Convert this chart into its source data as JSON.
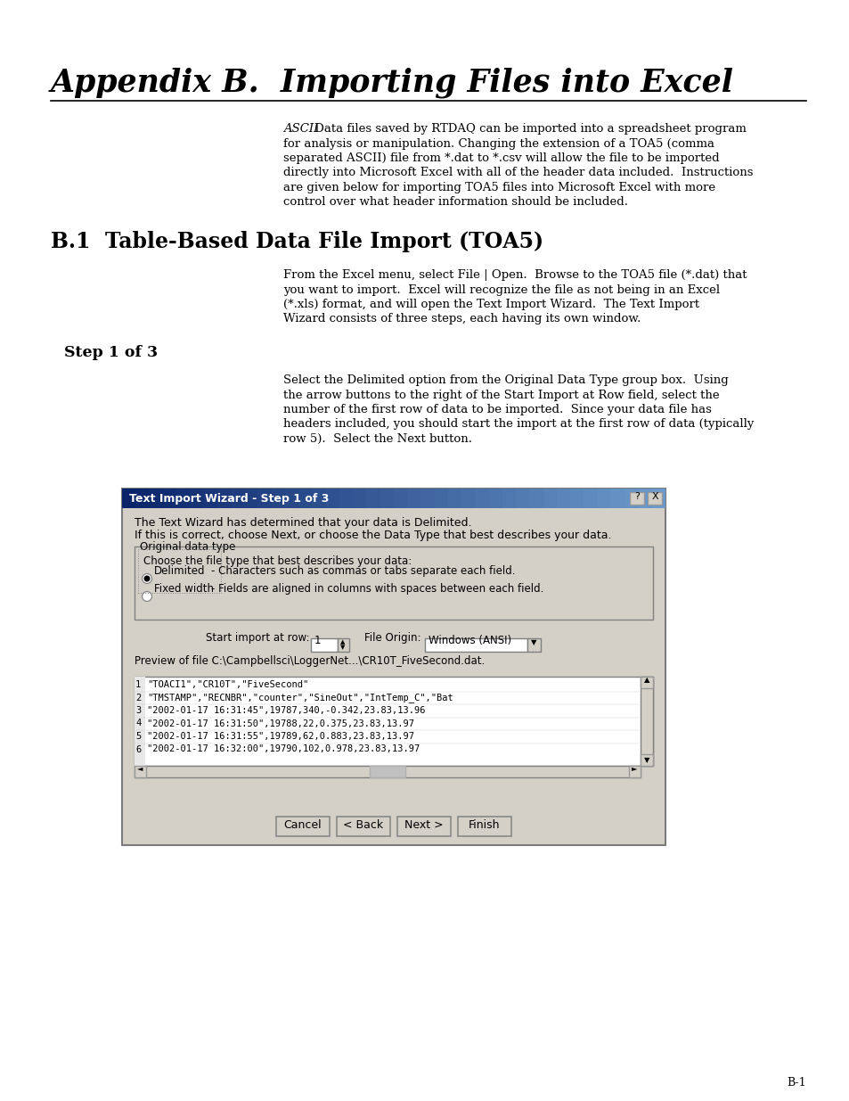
{
  "title": "Appendix B.  Importing Files into Excel",
  "bg_color": "#ffffff",
  "section_heading": "B.1  Table-Based Data File Import (TOA5)",
  "step_heading": "Step 1 of 3",
  "intro_text_parts": [
    [
      [
        "ASCII",
        true
      ],
      [
        " Data files saved by RTDAQ can be imported into a spreadsheet program",
        false
      ]
    ],
    [
      [
        "for analysis or manipulation. Changing the extension of a TOA5 (comma",
        false
      ]
    ],
    [
      [
        "separated ",
        false
      ],
      [
        "ASCII",
        true
      ],
      [
        ") file from *.dat to *.csv will allow the file to be imported",
        false
      ]
    ],
    [
      [
        "directly into Microsoft Excel with all of the header data included.  Instructions",
        false
      ]
    ],
    [
      [
        "are given below for importing TOA5 files into Microsoft Excel with more",
        false
      ]
    ],
    [
      [
        "control over what header information should be included.",
        false
      ]
    ]
  ],
  "section_text_parts": [
    [
      [
        "From the ",
        false
      ],
      [
        "Excel",
        true
      ],
      [
        " menu, select ",
        false
      ],
      [
        "File | Open",
        false
      ],
      [
        ".  Browse to the TOA5 file (*.dat) that",
        false
      ]
    ],
    [
      [
        "you want to import.  Excel will recognize the file as not being in an Excel",
        false
      ]
    ],
    [
      [
        "(*.xls) format, and will open the ",
        false
      ],
      [
        "Text Import Wizard",
        false
      ],
      [
        ".  The ",
        false
      ],
      [
        "Text Import",
        false
      ]
    ],
    [
      [
        "Wizard",
        false
      ],
      [
        " consists of three steps, each having its own window.",
        false
      ]
    ]
  ],
  "step_text_parts": [
    [
      [
        "Select the ",
        false
      ],
      [
        "Delimited",
        false
      ],
      [
        " option from the ",
        false
      ],
      [
        "Original Data Type",
        false
      ],
      [
        " group box.  Using",
        false
      ]
    ],
    [
      [
        "the arrow buttons to the right of the ",
        false
      ],
      [
        "Start Import at Row",
        false
      ],
      [
        " field, select the",
        false
      ]
    ],
    [
      [
        "number of the first row of data to be imported.  Since your data file has",
        false
      ]
    ],
    [
      [
        "headers included, you should start the import at the first row of data (typically",
        false
      ]
    ],
    [
      [
        "row 5).  Select the ",
        false
      ],
      [
        "Next",
        false
      ],
      [
        " button.",
        false
      ]
    ]
  ],
  "page_number": "B-1",
  "dialog_title": "Text Import Wizard - Step 1 of 3",
  "dialog_intro1": "The Text Wizard has determined that your data is Delimited.",
  "dialog_intro2": "If this is correct, choose Next, or choose the Data Type that best describes your data.",
  "group_label": "Original data type",
  "group_text": "Choose the file type that best describes your data:",
  "radio1_label": "Delimited",
  "radio1_desc": "- Characters such as commas or tabs separate each field.",
  "radio2_label": "Fixed width",
  "radio2_desc": "- Fields are aligned in columns with spaces between each field.",
  "start_row_label": "Start import at row:",
  "start_row_value": "1",
  "file_origin_label": "File Origin:",
  "file_origin_value": "Windows (ANSI)",
  "preview_label": "Preview of file C:\\Campbellsci\\LoggerNet...\\CR10T_FiveSecond.dat.",
  "preview_lines": [
    [
      "1",
      "\"TOACI1\",\"CR10T\",\"FiveSecond\""
    ],
    [
      "2",
      "\"TMSTAMP\",\"RECNBR\",\"counter\",\"SineOut\",\"IntTemp_C\",\"Bat"
    ],
    [
      "3",
      "\"2002-01-17 16:31:45\",19787,340,-0.342,23.83,13.96"
    ],
    [
      "4",
      "\"2002-01-17 16:31:50\",19788,22,0.375,23.83,13.97"
    ],
    [
      "5",
      "\"2002-01-17 16:31:55\",19789,62,0.883,23.83,13.97"
    ],
    [
      "6",
      "\"2002-01-17 16:32:00\",19790,102,0.978,23.83,13.97"
    ]
  ],
  "btn_cancel": "Cancel",
  "btn_back": "< Back",
  "btn_next": "Next >",
  "btn_finish": "Finish"
}
